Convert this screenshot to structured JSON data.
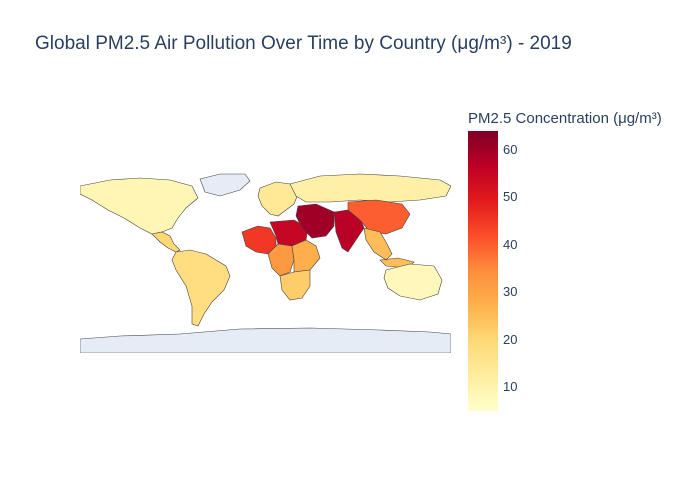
{
  "title": "Global PM2.5 Air Pollution Over Time by Country (μg/m³) - 2019",
  "colorbar": {
    "title": "PM2.5 Concentration (μg/m³)",
    "tick_labels": [
      "60",
      "50",
      "40",
      "30",
      "20",
      "10"
    ],
    "tick_values": [
      60,
      50,
      40,
      30,
      20,
      10
    ],
    "min": 5,
    "max": 64,
    "colorscale": [
      "#ffffcc",
      "#ffeda0",
      "#fed976",
      "#feb24c",
      "#fd8d3c",
      "#fc4e2a",
      "#e31a1c",
      "#bd0026",
      "#800026"
    ]
  },
  "map_data": {
    "type": "choropleth",
    "projection": "equirectangular",
    "land_color_no_data": "#e5ecf6",
    "border_color": "#444444",
    "regions": [
      {
        "region": "North America",
        "pm25": 9
      },
      {
        "region": "Central America",
        "pm25": 20
      },
      {
        "region": "South America",
        "pm25": 18
      },
      {
        "region": "West Africa",
        "pm25": 45
      },
      {
        "region": "Sahel",
        "pm25": 55
      },
      {
        "region": "Central Africa",
        "pm25": 32
      },
      {
        "region": "East Africa",
        "pm25": 28
      },
      {
        "region": "Southern Africa",
        "pm25": 22
      },
      {
        "region": "Europe",
        "pm25": 14
      },
      {
        "region": "Russia",
        "pm25": 11
      },
      {
        "region": "Middle East",
        "pm25": 60
      },
      {
        "region": "South Asia",
        "pm25": 57
      },
      {
        "region": "China",
        "pm25": 40
      },
      {
        "region": "Southeast Asia",
        "pm25": 25
      },
      {
        "region": "Australia",
        "pm25": 8
      },
      {
        "region": "Greenland",
        "pm25": null
      },
      {
        "region": "Antarctica",
        "pm25": null
      }
    ]
  }
}
